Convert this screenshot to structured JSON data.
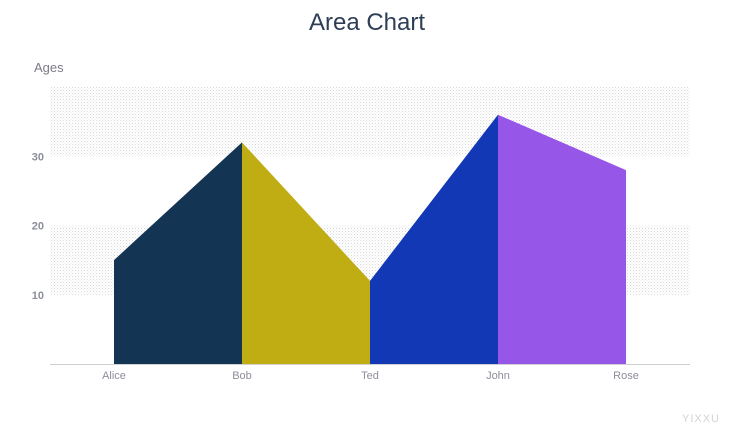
{
  "chart_data": {
    "type": "area",
    "title": "Area Chart",
    "ylabel": "Ages",
    "xlabel": "",
    "categories": [
      "Alice",
      "Bob",
      "Ted",
      "John",
      "Rose"
    ],
    "values": [
      15,
      32,
      12,
      36,
      28
    ],
    "ylim": [
      0,
      40
    ],
    "yticks": [
      10,
      20,
      30
    ],
    "segment_colors": [
      "#133453",
      "#bfad13",
      "#1238b5",
      "#9657e8"
    ],
    "plot_background": "striped-grey-bands",
    "legend": "none",
    "grid": "horizontal bands"
  },
  "watermark": "YIXXU"
}
